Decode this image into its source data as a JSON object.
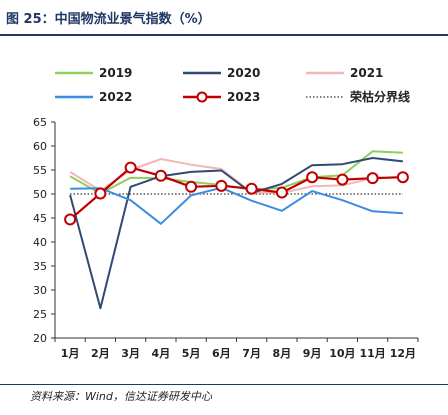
{
  "title": "图 25：中国物流业景气指数（%）",
  "source": "资料来源：Wind，信达证券研发中心",
  "chart_data": {
    "type": "line",
    "categories": [
      "1月",
      "2月",
      "3月",
      "4月",
      "5月",
      "6月",
      "7月",
      "8月",
      "9月",
      "10月",
      "11月",
      "12月"
    ],
    "ylim": [
      20,
      65
    ],
    "yticks": [
      20,
      25,
      30,
      35,
      40,
      45,
      50,
      55,
      60,
      65
    ],
    "grid": false,
    "legend_position": "top",
    "series": [
      {
        "name": "2019",
        "color": "#8fcf5f",
        "values": [
          53.7,
          50.1,
          53.4,
          53.3,
          52.5,
          51.9,
          50.9,
          51.3,
          53.5,
          53.9,
          58.9,
          58.6
        ]
      },
      {
        "name": "2020",
        "color": "#2f4a73",
        "values": [
          49.8,
          26.2,
          51.5,
          53.7,
          54.6,
          54.9,
          50.2,
          52.1,
          56.0,
          56.2,
          57.5,
          56.8
        ]
      },
      {
        "name": "2021",
        "color": "#f4b6b6",
        "values": [
          54.6,
          50.7,
          55.0,
          57.3,
          56.1,
          55.2,
          50.3,
          50.2,
          51.6,
          51.8,
          53.3,
          53.6
        ]
      },
      {
        "name": "2022",
        "color": "#3a8de0",
        "values": [
          51.1,
          51.2,
          48.7,
          43.8,
          49.7,
          51.3,
          48.6,
          46.5,
          50.6,
          48.7,
          46.4,
          46.0
        ]
      },
      {
        "name": "2023",
        "color": "#c00000",
        "marker": "circle",
        "values": [
          44.7,
          50.1,
          55.5,
          53.8,
          51.5,
          51.7,
          51.1,
          50.3,
          53.5,
          53.0,
          53.3,
          53.5
        ]
      },
      {
        "name": "荣枯分界线",
        "color": "#000000",
        "dash": "dotted",
        "values": [
          50,
          50,
          50,
          50,
          50,
          50,
          50,
          50,
          50,
          50,
          50,
          50
        ]
      }
    ]
  }
}
